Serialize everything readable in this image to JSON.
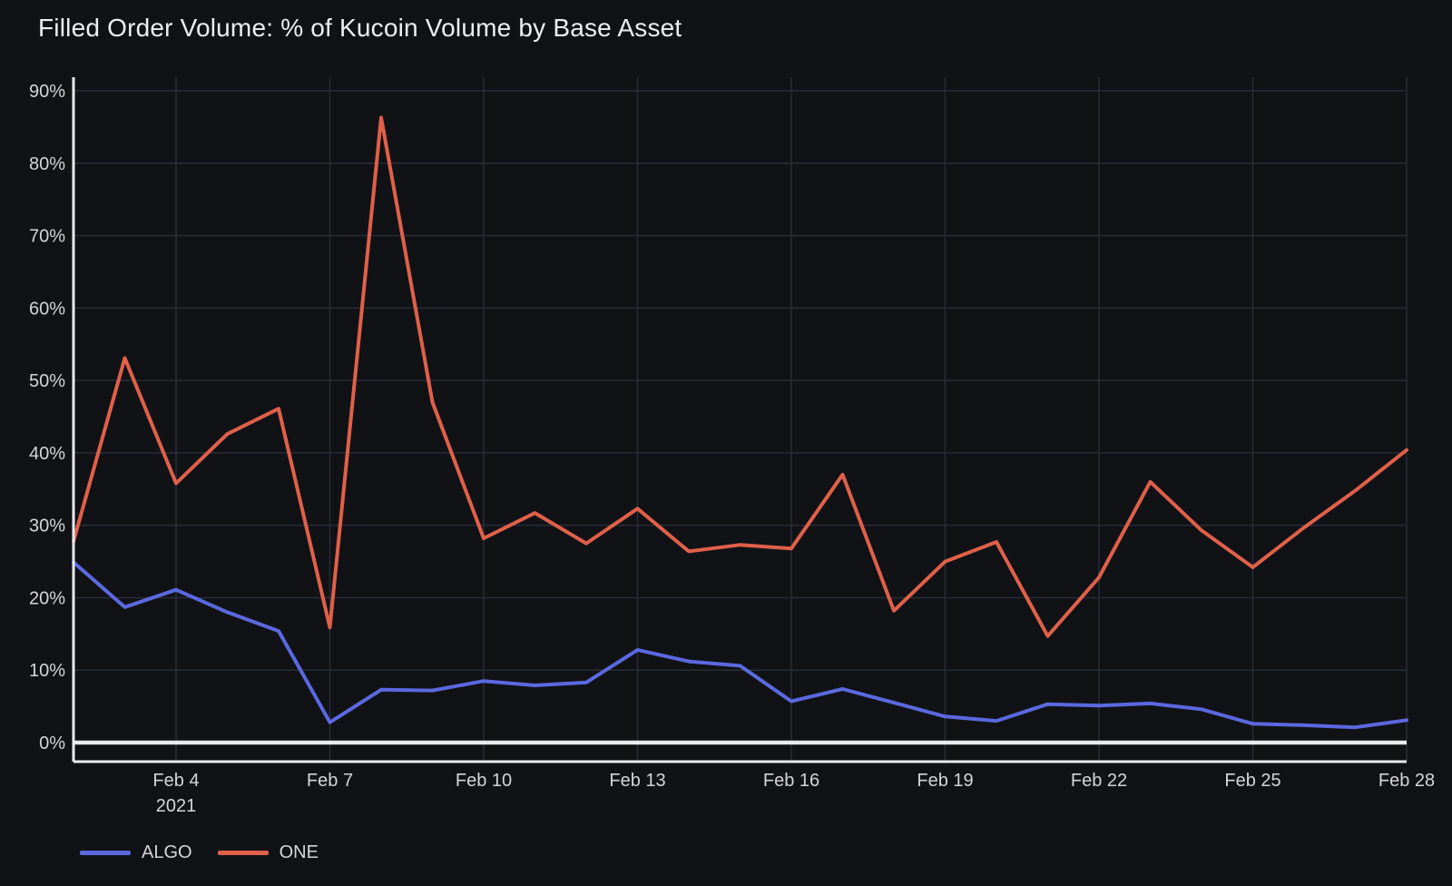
{
  "chart_data": {
    "type": "line",
    "title": "Filled Order Volume: % of Kucoin Volume by Base Asset",
    "x": [
      "Feb 2",
      "Feb 3",
      "Feb 4",
      "Feb 5",
      "Feb 6",
      "Feb 7",
      "Feb 8",
      "Feb 9",
      "Feb 10",
      "Feb 11",
      "Feb 12",
      "Feb 13",
      "Feb 14",
      "Feb 15",
      "Feb 16",
      "Feb 17",
      "Feb 18",
      "Feb 19",
      "Feb 20",
      "Feb 21",
      "Feb 22",
      "Feb 23",
      "Feb 24",
      "Feb 25",
      "Feb 26",
      "Feb 27",
      "Feb 28"
    ],
    "series": [
      {
        "name": "ALGO",
        "color": "#5b69e0",
        "values": [
          24.9,
          18.7,
          21.1,
          18.0,
          15.4,
          2.8,
          7.3,
          7.2,
          8.5,
          7.9,
          8.3,
          12.8,
          11.2,
          10.6,
          5.7,
          7.4,
          5.5,
          3.6,
          3.0,
          5.3,
          5.1,
          5.4,
          4.6,
          2.6,
          2.4,
          2.1,
          3.1
        ]
      },
      {
        "name": "ONE",
        "color": "#e0604a",
        "values": [
          27.8,
          53.1,
          35.8,
          42.6,
          46.1,
          15.9,
          86.3,
          47.0,
          28.2,
          31.7,
          27.5,
          32.3,
          26.4,
          27.3,
          26.8,
          37.0,
          18.2,
          25.0,
          27.7,
          14.7,
          22.8,
          36.0,
          29.3,
          24.2,
          29.7,
          34.8,
          40.4
        ]
      }
    ],
    "y_axis": {
      "min": 0,
      "max": 90,
      "tick_step": 10,
      "tick_labels": [
        "0%",
        "10%",
        "20%",
        "30%",
        "40%",
        "50%",
        "60%",
        "70%",
        "80%",
        "90%"
      ]
    },
    "x_axis": {
      "ticks": [
        {
          "label": "Feb 4",
          "index": 2,
          "sublabel": "2021"
        },
        {
          "label": "Feb 7",
          "index": 5
        },
        {
          "label": "Feb 10",
          "index": 8
        },
        {
          "label": "Feb 13",
          "index": 11
        },
        {
          "label": "Feb 16",
          "index": 14
        },
        {
          "label": "Feb 19",
          "index": 17
        },
        {
          "label": "Feb 22",
          "index": 20
        },
        {
          "label": "Feb 25",
          "index": 23
        },
        {
          "label": "Feb 28",
          "index": 26
        }
      ]
    },
    "legend": {
      "position": "bottom-left",
      "items": [
        "ALGO",
        "ONE"
      ]
    },
    "grid": true,
    "colors": {
      "background": "#111216",
      "gridline": "#282d39",
      "axis_line": "#e8eaed",
      "zero_line": "#e8eaed",
      "tick_text": "#d3d5db",
      "title_text": "#edeef2"
    }
  }
}
